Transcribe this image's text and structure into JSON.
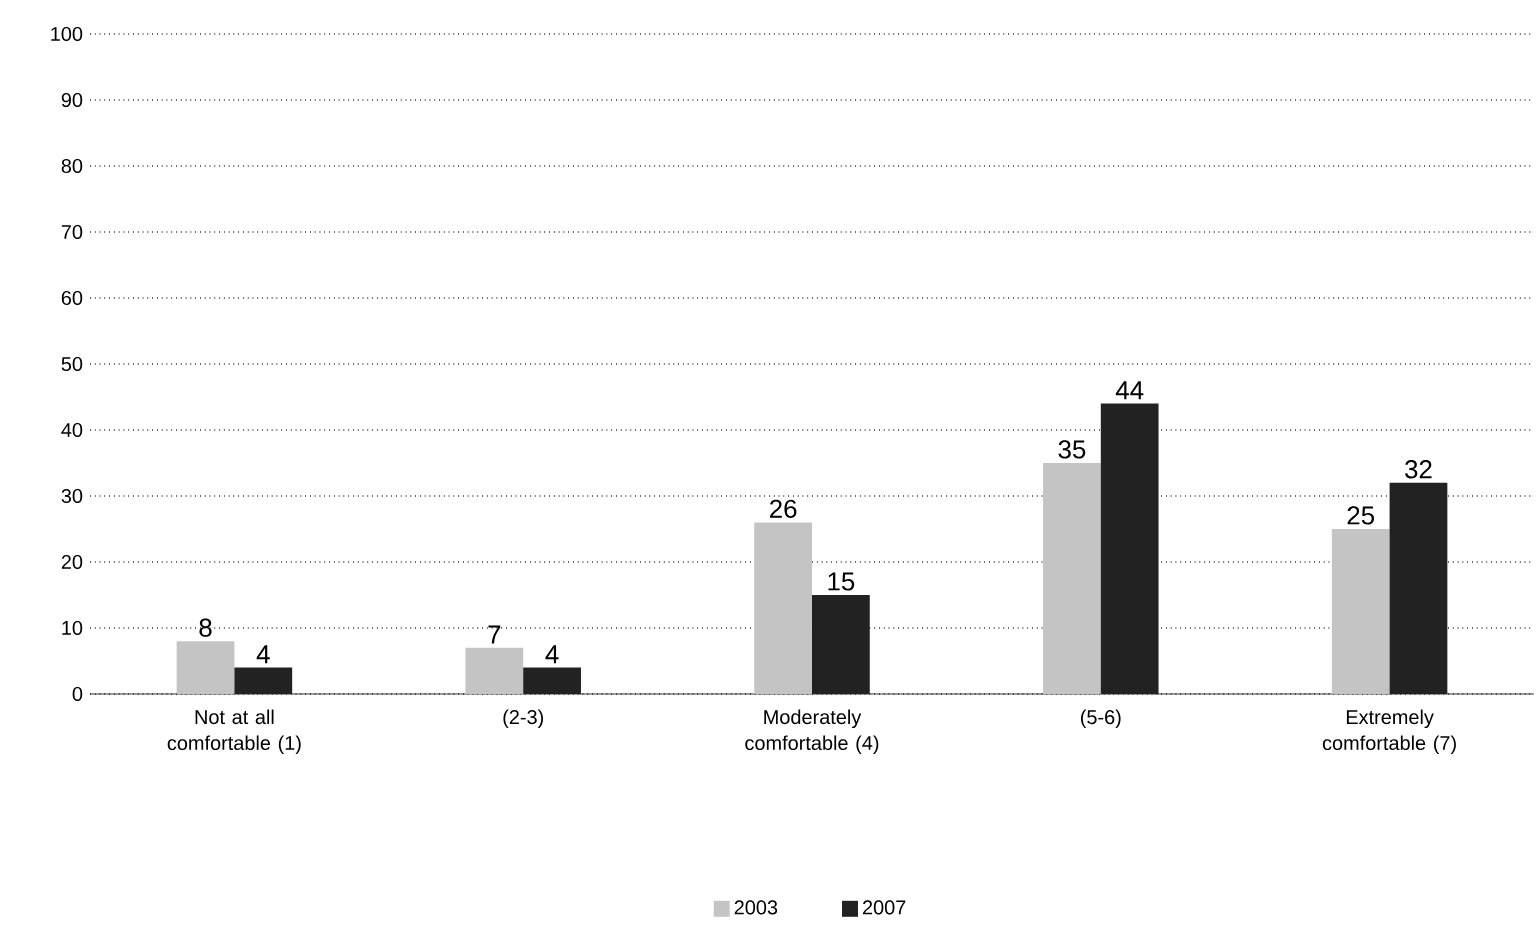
{
  "chart_data": {
    "type": "bar",
    "categories": [
      "Not at all comfortable (1)",
      "(2-3)",
      "Moderately comfortable (4)",
      "(5-6)",
      "Extremely comfortable (7)"
    ],
    "series": [
      {
        "name": "2003",
        "color": "#c4c4c4",
        "values": [
          8,
          7,
          26,
          35,
          25
        ]
      },
      {
        "name": "2007",
        "color": "#222222",
        "values": [
          4,
          4,
          15,
          44,
          32
        ]
      }
    ],
    "ylim": [
      0,
      100
    ],
    "yticks": [
      0,
      10,
      20,
      30,
      40,
      50,
      60,
      70,
      80,
      90,
      100
    ],
    "grid": "y",
    "legend": "bottom",
    "data_labels": true
  }
}
